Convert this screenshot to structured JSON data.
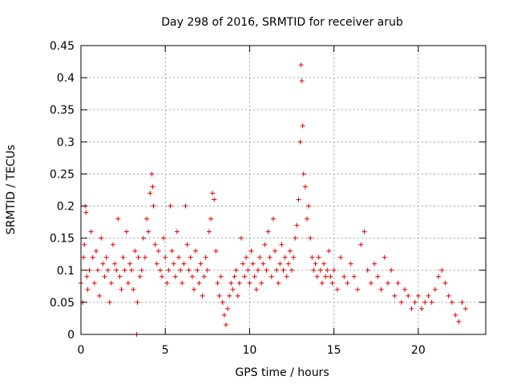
{
  "chart_data": {
    "type": "scatter",
    "title": "Day 298 of 2016, SRMTID for receiver arub",
    "xlabel": "GPS time / hours",
    "ylabel": "SRMTID / TECUs",
    "xlim": [
      0,
      24
    ],
    "ylim": [
      0,
      0.45
    ],
    "xticks": [
      0,
      5,
      10,
      15,
      20
    ],
    "yticks": [
      0,
      0.05,
      0.1,
      0.15,
      0.2,
      0.25,
      0.3,
      0.35,
      0.4,
      0.45
    ],
    "grid": true,
    "legend": "none",
    "marker": "+",
    "color": "#e00000",
    "series": [
      {
        "name": "SRMTID",
        "points": [
          [
            0.0,
            0.08
          ],
          [
            0.1,
            0.05
          ],
          [
            0.15,
            0.12
          ],
          [
            0.2,
            0.14
          ],
          [
            0.25,
            0.2
          ],
          [
            0.3,
            0.19
          ],
          [
            0.35,
            0.09
          ],
          [
            0.4,
            0.07
          ],
          [
            0.5,
            0.1
          ],
          [
            0.6,
            0.16
          ],
          [
            0.7,
            0.12
          ],
          [
            0.8,
            0.08
          ],
          [
            0.9,
            0.13
          ],
          [
            1.0,
            0.1
          ],
          [
            1.1,
            0.06
          ],
          [
            1.2,
            0.15
          ],
          [
            1.3,
            0.11
          ],
          [
            1.4,
            0.09
          ],
          [
            1.5,
            0.12
          ],
          [
            1.6,
            0.1
          ],
          [
            1.7,
            0.05
          ],
          [
            1.8,
            0.08
          ],
          [
            1.9,
            0.14
          ],
          [
            2.0,
            0.11
          ],
          [
            2.1,
            0.1
          ],
          [
            2.2,
            0.18
          ],
          [
            2.3,
            0.09
          ],
          [
            2.4,
            0.07
          ],
          [
            2.5,
            0.12
          ],
          [
            2.6,
            0.1
          ],
          [
            2.7,
            0.16
          ],
          [
            2.8,
            0.08
          ],
          [
            2.9,
            0.11
          ],
          [
            3.0,
            0.1
          ],
          [
            3.1,
            0.07
          ],
          [
            3.2,
            0.13
          ],
          [
            3.3,
            0.0
          ],
          [
            3.35,
            0.05
          ],
          [
            3.4,
            0.12
          ],
          [
            3.5,
            0.09
          ],
          [
            3.6,
            0.1
          ],
          [
            3.7,
            0.15
          ],
          [
            3.8,
            0.12
          ],
          [
            3.9,
            0.18
          ],
          [
            4.0,
            0.16
          ],
          [
            4.1,
            0.22
          ],
          [
            4.2,
            0.25
          ],
          [
            4.25,
            0.23
          ],
          [
            4.3,
            0.2
          ],
          [
            4.4,
            0.14
          ],
          [
            4.5,
            0.11
          ],
          [
            4.6,
            0.13
          ],
          [
            4.7,
            0.1
          ],
          [
            4.8,
            0.09
          ],
          [
            4.9,
            0.15
          ],
          [
            5.0,
            0.12
          ],
          [
            5.1,
            0.08
          ],
          [
            5.2,
            0.1
          ],
          [
            5.3,
            0.2
          ],
          [
            5.4,
            0.13
          ],
          [
            5.5,
            0.11
          ],
          [
            5.6,
            0.09
          ],
          [
            5.7,
            0.16
          ],
          [
            5.8,
            0.12
          ],
          [
            5.9,
            0.1
          ],
          [
            6.0,
            0.08
          ],
          [
            6.1,
            0.11
          ],
          [
            6.2,
            0.2
          ],
          [
            6.3,
            0.14
          ],
          [
            6.4,
            0.1
          ],
          [
            6.5,
            0.12
          ],
          [
            6.6,
            0.09
          ],
          [
            6.7,
            0.07
          ],
          [
            6.8,
            0.13
          ],
          [
            6.9,
            0.1
          ],
          [
            7.0,
            0.08
          ],
          [
            7.1,
            0.11
          ],
          [
            7.2,
            0.06
          ],
          [
            7.3,
            0.09
          ],
          [
            7.4,
            0.12
          ],
          [
            7.5,
            0.1
          ],
          [
            7.6,
            0.16
          ],
          [
            7.7,
            0.18
          ],
          [
            7.8,
            0.22
          ],
          [
            7.9,
            0.21
          ],
          [
            8.0,
            0.13
          ],
          [
            8.1,
            0.08
          ],
          [
            8.2,
            0.06
          ],
          [
            8.3,
            0.09
          ],
          [
            8.4,
            0.05
          ],
          [
            8.5,
            0.03
          ],
          [
            8.6,
            0.015
          ],
          [
            8.7,
            0.04
          ],
          [
            8.8,
            0.06
          ],
          [
            8.9,
            0.08
          ],
          [
            9.0,
            0.07
          ],
          [
            9.1,
            0.09
          ],
          [
            9.2,
            0.1
          ],
          [
            9.3,
            0.06
          ],
          [
            9.4,
            0.08
          ],
          [
            9.5,
            0.15
          ],
          [
            9.6,
            0.11
          ],
          [
            9.7,
            0.09
          ],
          [
            9.8,
            0.12
          ],
          [
            9.9,
            0.1
          ],
          [
            10.0,
            0.08
          ],
          [
            10.1,
            0.13
          ],
          [
            10.2,
            0.11
          ],
          [
            10.3,
            0.09
          ],
          [
            10.4,
            0.07
          ],
          [
            10.5,
            0.1
          ],
          [
            10.6,
            0.12
          ],
          [
            10.7,
            0.08
          ],
          [
            10.8,
            0.11
          ],
          [
            10.9,
            0.14
          ],
          [
            11.0,
            0.1
          ],
          [
            11.1,
            0.16
          ],
          [
            11.2,
            0.12
          ],
          [
            11.3,
            0.09
          ],
          [
            11.4,
            0.18
          ],
          [
            11.5,
            0.13
          ],
          [
            11.6,
            0.1
          ],
          [
            11.7,
            0.08
          ],
          [
            11.8,
            0.11
          ],
          [
            11.9,
            0.14
          ],
          [
            12.0,
            0.1
          ],
          [
            12.1,
            0.12
          ],
          [
            12.2,
            0.09
          ],
          [
            12.3,
            0.11
          ],
          [
            12.4,
            0.13
          ],
          [
            12.5,
            0.1
          ],
          [
            12.6,
            0.12
          ],
          [
            12.7,
            0.15
          ],
          [
            12.8,
            0.17
          ],
          [
            12.9,
            0.21
          ],
          [
            13.0,
            0.3
          ],
          [
            13.05,
            0.42
          ],
          [
            13.1,
            0.395
          ],
          [
            13.15,
            0.325
          ],
          [
            13.2,
            0.25
          ],
          [
            13.3,
            0.23
          ],
          [
            13.4,
            0.18
          ],
          [
            13.5,
            0.2
          ],
          [
            13.6,
            0.15
          ],
          [
            13.7,
            0.12
          ],
          [
            13.8,
            0.1
          ],
          [
            13.9,
            0.11
          ],
          [
            14.0,
            0.09
          ],
          [
            14.1,
            0.12
          ],
          [
            14.2,
            0.1
          ],
          [
            14.3,
            0.08
          ],
          [
            14.4,
            0.11
          ],
          [
            14.5,
            0.09
          ],
          [
            14.6,
            0.1
          ],
          [
            14.7,
            0.13
          ],
          [
            14.8,
            0.09
          ],
          [
            14.9,
            0.08
          ],
          [
            15.0,
            0.1
          ],
          [
            15.2,
            0.07
          ],
          [
            15.4,
            0.12
          ],
          [
            15.6,
            0.09
          ],
          [
            15.8,
            0.08
          ],
          [
            16.0,
            0.11
          ],
          [
            16.2,
            0.09
          ],
          [
            16.4,
            0.07
          ],
          [
            16.6,
            0.14
          ],
          [
            16.8,
            0.16
          ],
          [
            17.0,
            0.1
          ],
          [
            17.2,
            0.08
          ],
          [
            17.4,
            0.11
          ],
          [
            17.6,
            0.09
          ],
          [
            17.8,
            0.07
          ],
          [
            18.0,
            0.12
          ],
          [
            18.2,
            0.08
          ],
          [
            18.4,
            0.1
          ],
          [
            18.6,
            0.06
          ],
          [
            18.8,
            0.08
          ],
          [
            19.0,
            0.05
          ],
          [
            19.2,
            0.07
          ],
          [
            19.4,
            0.06
          ],
          [
            19.6,
            0.04
          ],
          [
            19.8,
            0.05
          ],
          [
            20.0,
            0.06
          ],
          [
            20.2,
            0.04
          ],
          [
            20.4,
            0.05
          ],
          [
            20.6,
            0.06
          ],
          [
            20.8,
            0.05
          ],
          [
            21.0,
            0.07
          ],
          [
            21.2,
            0.09
          ],
          [
            21.4,
            0.1
          ],
          [
            21.6,
            0.08
          ],
          [
            21.8,
            0.06
          ],
          [
            22.0,
            0.05
          ],
          [
            22.2,
            0.03
          ],
          [
            22.4,
            0.02
          ],
          [
            22.6,
            0.05
          ],
          [
            22.8,
            0.04
          ]
        ]
      }
    ]
  }
}
